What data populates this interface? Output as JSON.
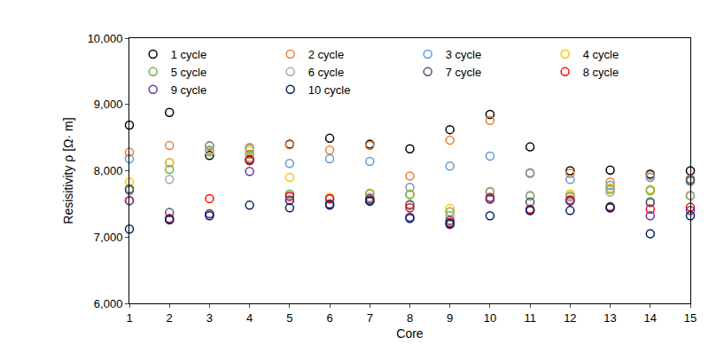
{
  "chart_data": {
    "type": "scatter",
    "marker": "circle-open",
    "x_label": "Core",
    "y_label": "Resisitivity ρ [Ω· m]",
    "x": [
      1,
      2,
      3,
      4,
      5,
      6,
      7,
      8,
      9,
      10,
      11,
      12,
      13,
      14,
      15
    ],
    "xlim": [
      1,
      15
    ],
    "xticks": [
      1,
      2,
      3,
      4,
      5,
      6,
      7,
      8,
      9,
      10,
      11,
      12,
      13,
      14,
      15
    ],
    "ylim": [
      6000,
      10000
    ],
    "yticks": [
      {
        "value": 6000,
        "label": "6,000"
      },
      {
        "value": 7000,
        "label": "7,000"
      },
      {
        "value": 8000,
        "label": "8,000"
      },
      {
        "value": 9000,
        "label": "9,000"
      },
      {
        "value": 10000,
        "label": "10,000"
      }
    ],
    "grid": false,
    "legend": "upper right",
    "series": [
      {
        "name": "1 cycle",
        "color": "#000000",
        "values": [
          8690,
          8880,
          8230,
          8170,
          8400,
          8490,
          8400,
          8330,
          8620,
          8850,
          8360,
          8000,
          8010,
          7950,
          8000
        ]
      },
      {
        "name": "2 cycle",
        "color": "#ed7d31",
        "values": [
          8280,
          8380,
          8370,
          8350,
          8390,
          8310,
          8380,
          7920,
          8460,
          8760,
          7970,
          7960,
          7830,
          7930,
          7880
        ]
      },
      {
        "name": "3 cycle",
        "color": "#5b9bd5",
        "values": [
          8180,
          8120,
          8380,
          8330,
          8110,
          8180,
          8140,
          7750,
          8070,
          8220,
          7960,
          7870,
          7780,
          7900,
          7840
        ]
      },
      {
        "name": "4 cycle",
        "color": "#ffc000",
        "values": [
          7830,
          8120,
          8300,
          8300,
          7900,
          7600,
          7650,
          7650,
          7430,
          7680,
          7620,
          7650,
          7740,
          7720,
          7630
        ]
      },
      {
        "name": "5 cycle",
        "color": "#70ad47",
        "values": [
          7730,
          8020,
          8310,
          8250,
          7650,
          7580,
          7660,
          7640,
          7380,
          7680,
          7620,
          7620,
          7720,
          7700,
          7620
        ]
      },
      {
        "name": "6 cycle",
        "color": "#a5a5a5",
        "values": [
          7700,
          7870,
          8280,
          8200,
          7600,
          7570,
          7600,
          7500,
          7320,
          7690,
          7630,
          7600,
          7680,
          7540,
          7630
        ]
      },
      {
        "name": "7 cycle",
        "color": "#44546a",
        "values": [
          7720,
          7370,
          7350,
          8150,
          7560,
          7500,
          7580,
          7480,
          7250,
          7600,
          7530,
          7560,
          7460,
          7520,
          7860
        ]
      },
      {
        "name": "8 cycle",
        "color": "#ff0000",
        "values": [
          7550,
          7280,
          7580,
          8160,
          7620,
          7580,
          7560,
          7440,
          7220,
          7580,
          7420,
          7560,
          7450,
          7420,
          7450
        ]
      },
      {
        "name": "9 cycle",
        "color": "#7030a0",
        "values": [
          7550,
          7270,
          7350,
          7990,
          7550,
          7500,
          7550,
          7300,
          7190,
          7570,
          7400,
          7540,
          7440,
          7320,
          7400
        ]
      },
      {
        "name": "10 cycle",
        "color": "#002060",
        "values": [
          7120,
          7260,
          7320,
          7480,
          7440,
          7480,
          7540,
          7280,
          7200,
          7320,
          7400,
          7400,
          7440,
          7050,
          7320
        ]
      }
    ]
  }
}
